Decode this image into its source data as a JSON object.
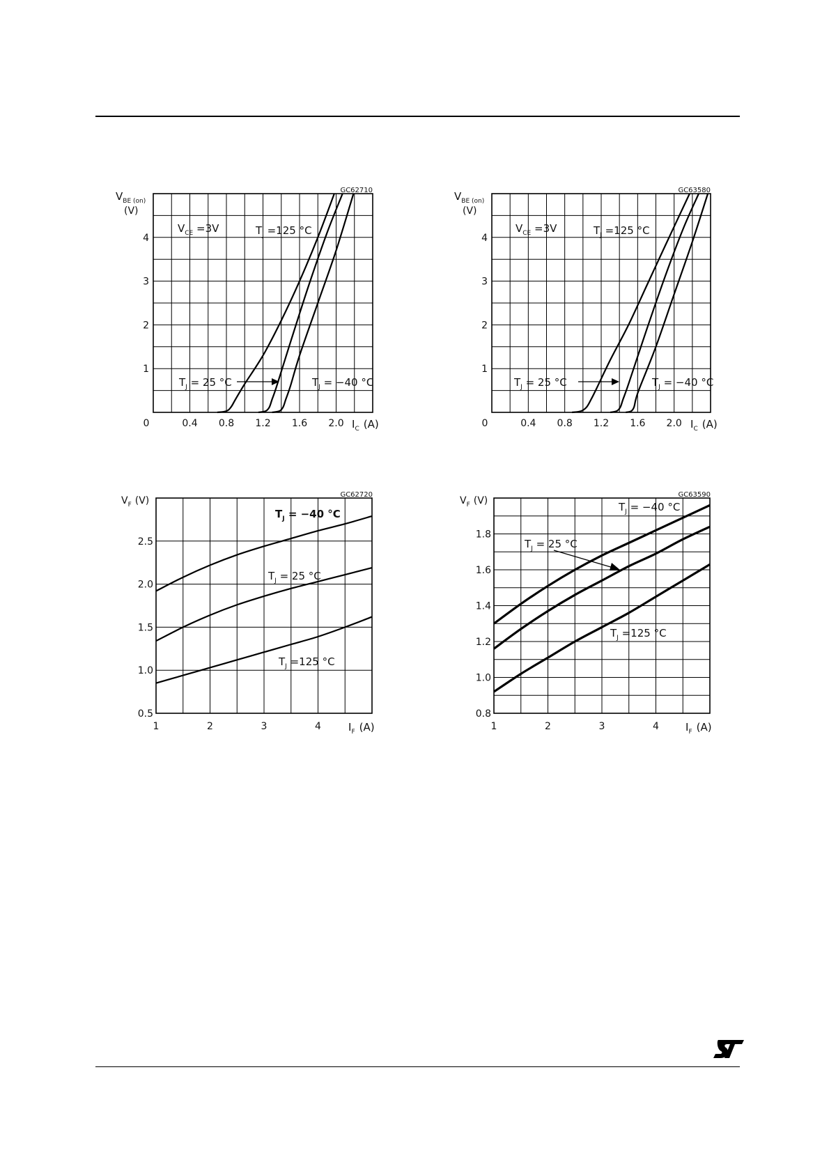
{
  "charts": [
    {
      "code": "GC62710",
      "type": "line",
      "ylabel_main": "V",
      "ylabel_sub": "BE (on)",
      "ylabel_unit": "(V)",
      "xlabel_main": "I",
      "xlabel_sub": "C",
      "xlabel_unit": "(A)",
      "x_ticks": [
        "0",
        "0.4",
        "0.8",
        "1.2",
        "1.6",
        "2.0"
      ],
      "y_ticks": [
        "1",
        "2",
        "3",
        "4"
      ],
      "xlim": [
        0,
        2.4
      ],
      "ylim": [
        0,
        5
      ],
      "x_grid": 12,
      "y_grid": 10,
      "annotations": [
        {
          "main": "V",
          "sub": "CE",
          "rest": " =3V"
        },
        {
          "main": "T",
          "sub": "J",
          "rest": " =125 °C"
        },
        {
          "main": "T",
          "sub": "J",
          "rest": " = 25 °C"
        },
        {
          "main": "T",
          "sub": "J",
          "rest": " = −40 °C"
        }
      ],
      "series": [
        {
          "x": [
            0.7,
            0.8,
            0.85,
            0.9,
            1.0,
            1.2,
            1.4,
            1.6,
            1.8,
            1.98
          ],
          "y": [
            0,
            0.03,
            0.12,
            0.3,
            0.65,
            1.3,
            2.1,
            3.0,
            4.0,
            5.0
          ]
        },
        {
          "x": [
            1.15,
            1.23,
            1.27,
            1.3,
            1.35,
            1.5,
            1.7,
            1.9,
            2.07
          ],
          "y": [
            0,
            0.03,
            0.12,
            0.3,
            0.6,
            1.6,
            2.9,
            4.1,
            5.0
          ]
        },
        {
          "x": [
            1.3,
            1.38,
            1.42,
            1.45,
            1.5,
            1.6,
            1.8,
            2.0,
            2.19
          ],
          "y": [
            0,
            0.03,
            0.12,
            0.3,
            0.6,
            1.3,
            2.5,
            3.7,
            5.0
          ]
        }
      ]
    },
    {
      "code": "GC63580",
      "type": "line",
      "ylabel_main": "V",
      "ylabel_sub": "BE (on)",
      "ylabel_unit": "(V)",
      "xlabel_main": "I",
      "xlabel_sub": "C",
      "xlabel_unit": "(A)",
      "x_ticks": [
        "0",
        "0.4",
        "0.8",
        "1.2",
        "1.6",
        "2.0"
      ],
      "y_ticks": [
        "1",
        "2",
        "3",
        "4"
      ],
      "xlim": [
        0,
        2.4
      ],
      "ylim": [
        0,
        5
      ],
      "x_grid": 12,
      "y_grid": 10,
      "annotations": [
        {
          "main": "V",
          "sub": "CE",
          "rest": " =3V"
        },
        {
          "main": "T",
          "sub": "J",
          "rest": " =125 °C"
        },
        {
          "main": "T",
          "sub": "J",
          "rest": " = 25 °C"
        },
        {
          "main": "T",
          "sub": "J",
          "rest": " = −40 °C"
        }
      ],
      "series": [
        {
          "x": [
            0.88,
            0.98,
            1.04,
            1.09,
            1.15,
            1.3,
            1.5,
            1.7,
            1.9,
            2.17
          ],
          "y": [
            0,
            0.03,
            0.12,
            0.3,
            0.55,
            1.2,
            2.0,
            2.9,
            3.8,
            5.0
          ]
        },
        {
          "x": [
            1.3,
            1.37,
            1.41,
            1.44,
            1.5,
            1.7,
            1.9,
            2.1,
            2.27
          ],
          "y": [
            0,
            0.03,
            0.12,
            0.3,
            0.65,
            1.9,
            3.1,
            4.2,
            5.0
          ]
        },
        {
          "x": [
            1.47,
            1.53,
            1.56,
            1.58,
            1.62,
            1.8,
            2.0,
            2.2,
            2.37
          ],
          "y": [
            0,
            0.03,
            0.12,
            0.3,
            0.55,
            1.5,
            2.7,
            3.9,
            5.0
          ]
        }
      ]
    },
    {
      "code": "GC62720",
      "type": "line",
      "ylabel_main": "V",
      "ylabel_sub": "F",
      "ylabel_unit": "(V)",
      "xlabel_main": "I",
      "xlabel_sub": "F",
      "xlabel_unit": "(A)",
      "x_ticks": [
        "1",
        "2",
        "3",
        "4"
      ],
      "y_ticks": [
        "0.5",
        "1.0",
        "1.5",
        "2.0",
        "2.5"
      ],
      "xlim": [
        1,
        5
      ],
      "ylim": [
        0.5,
        3.0
      ],
      "x_grid": 8,
      "y_grid": 5,
      "annotations": [
        {
          "main": "T",
          "sub": "J",
          "rest": " = −40 °C"
        },
        {
          "main": "T",
          "sub": "J",
          "rest": " = 25 °C"
        },
        {
          "main": "T",
          "sub": "J",
          "rest": " =125 °C"
        }
      ],
      "series": [
        {
          "x": [
            1,
            1.5,
            2,
            2.5,
            3,
            3.5,
            4,
            4.5,
            5
          ],
          "y": [
            1.92,
            2.08,
            2.22,
            2.34,
            2.44,
            2.53,
            2.62,
            2.7,
            2.79
          ]
        },
        {
          "x": [
            1,
            1.5,
            2,
            2.5,
            3,
            3.5,
            4,
            4.5,
            5
          ],
          "y": [
            1.34,
            1.5,
            1.64,
            1.76,
            1.86,
            1.95,
            2.03,
            2.11,
            2.19
          ]
        },
        {
          "x": [
            1,
            1.5,
            2,
            2.5,
            3,
            3.5,
            4,
            4.5,
            5
          ],
          "y": [
            0.85,
            0.94,
            1.03,
            1.12,
            1.21,
            1.3,
            1.39,
            1.5,
            1.62
          ]
        }
      ]
    },
    {
      "code": "GC63590",
      "type": "line",
      "ylabel_main": "V",
      "ylabel_sub": "F",
      "ylabel_unit": "(V)",
      "xlabel_main": "I",
      "xlabel_sub": "F",
      "xlabel_unit": "(A)",
      "x_ticks": [
        "1",
        "2",
        "3",
        "4"
      ],
      "y_ticks": [
        "0.8",
        "1.0",
        "1.2",
        "1.4",
        "1.6",
        "1.8"
      ],
      "xlim": [
        1,
        5
      ],
      "ylim": [
        0.8,
        2.0
      ],
      "x_grid": 8,
      "y_grid": 12,
      "annotations": [
        {
          "main": "T",
          "sub": "J",
          "rest": " = −40 °C"
        },
        {
          "main": "T",
          "sub": "J",
          "rest": " = 25 °C"
        },
        {
          "main": "T",
          "sub": "J",
          "rest": " =125 °C"
        }
      ],
      "series": [
        {
          "x": [
            1,
            1.5,
            2,
            2.5,
            3,
            3.5,
            4,
            4.5,
            5
          ],
          "y": [
            1.3,
            1.41,
            1.51,
            1.6,
            1.68,
            1.75,
            1.82,
            1.89,
            1.96
          ]
        },
        {
          "x": [
            1,
            1.5,
            2,
            2.5,
            3,
            3.5,
            4,
            4.5,
            5
          ],
          "y": [
            1.16,
            1.27,
            1.37,
            1.46,
            1.54,
            1.62,
            1.69,
            1.77,
            1.84
          ]
        },
        {
          "x": [
            1,
            1.5,
            2,
            2.5,
            3,
            3.5,
            4,
            4.5,
            5
          ],
          "y": [
            0.92,
            1.02,
            1.11,
            1.2,
            1.28,
            1.36,
            1.45,
            1.54,
            1.63
          ]
        }
      ]
    }
  ],
  "logo_text": "ST"
}
